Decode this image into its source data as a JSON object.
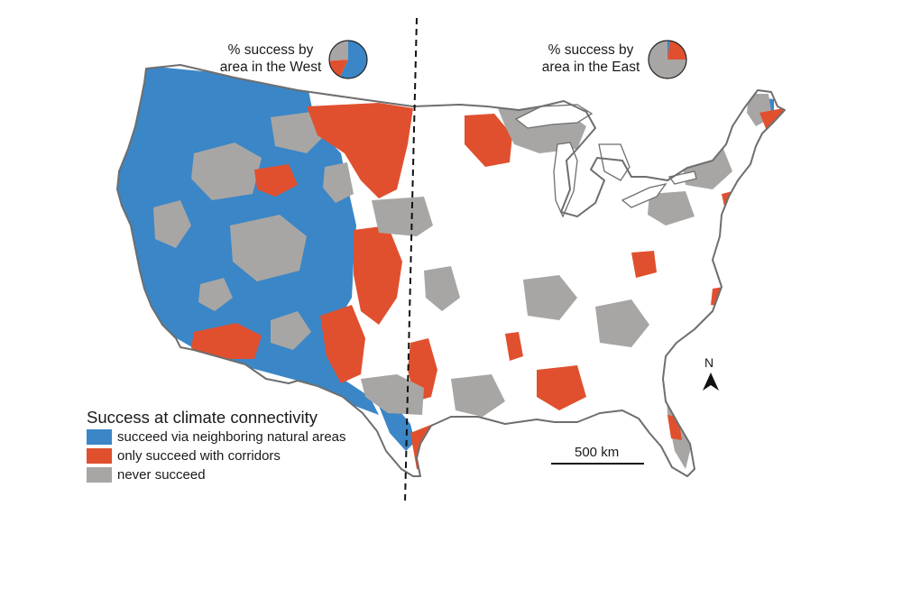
{
  "pies": {
    "west": {
      "label_line1": "% success by",
      "label_line2": "area in the West",
      "slices": [
        {
          "category": "succeed",
          "fraction": 0.57
        },
        {
          "category": "corridors",
          "fraction": 0.17
        },
        {
          "category": "never",
          "fraction": 0.26
        }
      ]
    },
    "east": {
      "label_line1": "% success by",
      "label_line2": "area in the East",
      "slices": [
        {
          "category": "succeed",
          "fraction": 0.02
        },
        {
          "category": "corridors",
          "fraction": 0.23
        },
        {
          "category": "never",
          "fraction": 0.75
        }
      ]
    }
  },
  "legend": {
    "title": "Success at climate connectivity",
    "items": [
      {
        "key": "succeed",
        "label": "succeed via neighboring natural areas",
        "color": "#3b86c6"
      },
      {
        "key": "corridors",
        "label": "only succeed with corridors",
        "color": "#e0502e"
      },
      {
        "key": "never",
        "label": "never succeed",
        "color": "#a8a6a4"
      }
    ]
  },
  "scale_bar": {
    "label": "500 km"
  },
  "north_arrow": {
    "label": "N"
  },
  "colors": {
    "outline": "#6e6e6e",
    "divider": "#111111",
    "land": "#ffffff"
  }
}
